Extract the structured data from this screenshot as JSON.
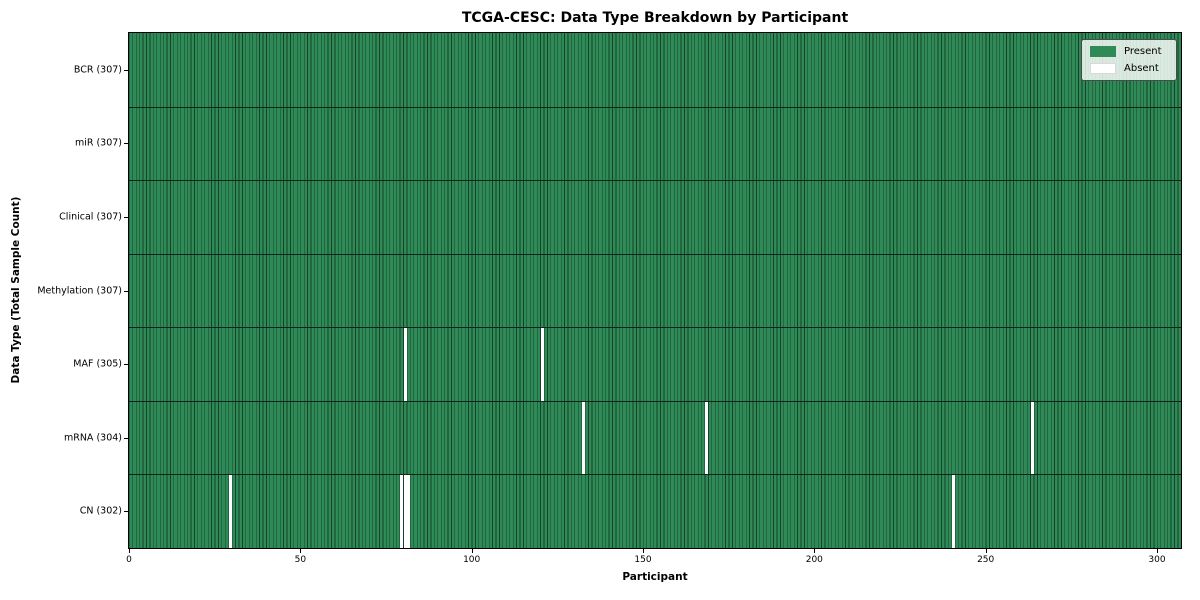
{
  "chart_data": {
    "type": "heatmap",
    "title": "TCGA-CESC: Data Type Breakdown by Participant",
    "xlabel": "Participant",
    "ylabel": "Data Type (Total Sample Count)",
    "n_participants": 307,
    "x_ticks": [
      0,
      50,
      100,
      150,
      200,
      250,
      300
    ],
    "legend": [
      {
        "label": "Present",
        "color": "#2e8b57"
      },
      {
        "label": "Absent",
        "color": "#ffffff"
      }
    ],
    "rows": [
      {
        "label": "BCR (307)",
        "data_type": "BCR",
        "present_count": 307,
        "absent_participants": []
      },
      {
        "label": "miR (307)",
        "data_type": "miR",
        "present_count": 307,
        "absent_participants": []
      },
      {
        "label": "Clinical (307)",
        "data_type": "Clinical",
        "present_count": 307,
        "absent_participants": []
      },
      {
        "label": "Methylation (307)",
        "data_type": "Methylation",
        "present_count": 307,
        "absent_participants": []
      },
      {
        "label": "MAF (305)",
        "data_type": "MAF",
        "present_count": 305,
        "absent_participants": [
          80,
          120
        ]
      },
      {
        "label": "mRNA (304)",
        "data_type": "mRNA",
        "present_count": 304,
        "absent_participants": [
          132,
          168,
          263
        ]
      },
      {
        "label": "CN (302)",
        "data_type": "CN",
        "present_count": 302,
        "absent_participants": [
          29,
          79,
          80,
          81,
          240
        ]
      }
    ],
    "colors": {
      "present": "#2e8b57",
      "absent": "#ffffff",
      "cell_edge": "#17402a",
      "row_separator": "#10231a",
      "frame": "#000000"
    }
  }
}
